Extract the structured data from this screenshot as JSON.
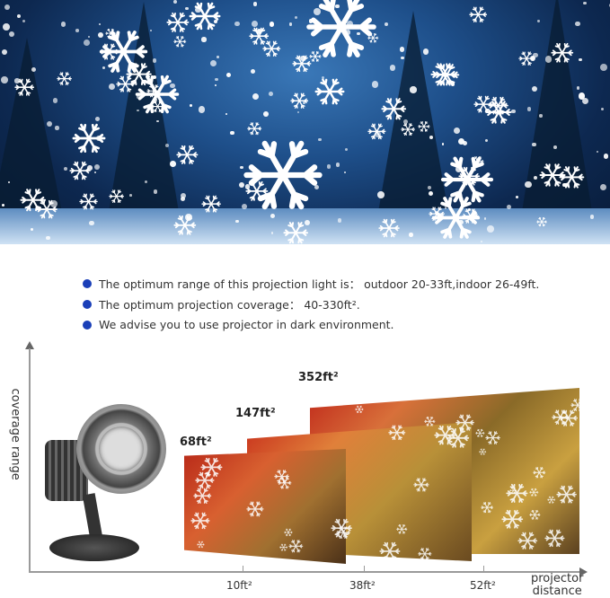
{
  "bullets": [
    "The optimum range of this projection light is： outdoor 20-33ft,indoor 26-49ft.",
    "The optimum projection coverage： 40-330ft².",
    "We advise you to use projector in dark environment."
  ],
  "bullet_color": "#1a3fb8",
  "diagram": {
    "y_axis_label": "coverage range",
    "x_axis_label_line1": "projector",
    "x_axis_label_line2": "distance",
    "x_ticks": [
      "10ft²",
      "38ft²",
      "52ft²"
    ],
    "coverage_labels": [
      "68ft²",
      "147ft²",
      "352ft²"
    ]
  },
  "icons": {
    "hero": "snowflake-icon",
    "product": "projector-icon"
  }
}
